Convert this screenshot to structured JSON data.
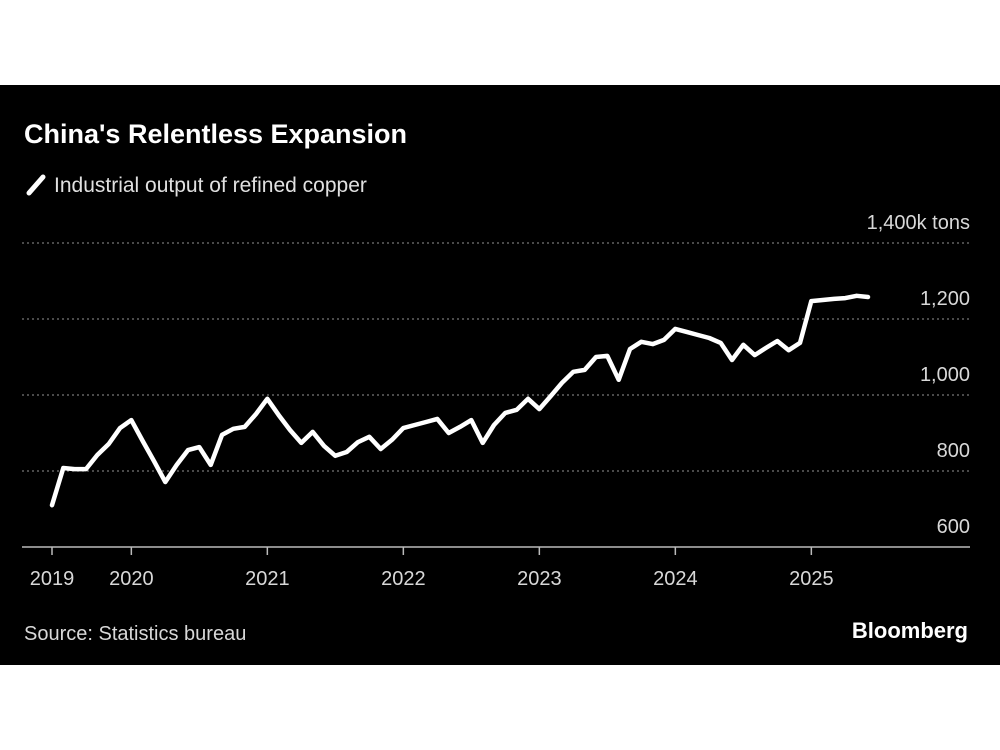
{
  "chart_data": {
    "type": "line",
    "title": "China's Relentless Expansion",
    "source": "Source: Statistics bureau",
    "brand": "Bloomberg",
    "x": [
      "2019-06",
      "2019-07",
      "2019-08",
      "2019-09",
      "2019-10",
      "2019-11",
      "2019-12",
      "2020-01",
      "2020-02",
      "2020-03",
      "2020-04",
      "2020-05",
      "2020-06",
      "2020-07",
      "2020-08",
      "2020-09",
      "2020-10",
      "2020-11",
      "2020-12",
      "2021-01",
      "2021-02",
      "2021-03",
      "2021-04",
      "2021-05",
      "2021-06",
      "2021-07",
      "2021-08",
      "2021-09",
      "2021-10",
      "2021-11",
      "2021-12",
      "2022-01",
      "2022-02",
      "2022-03",
      "2022-04",
      "2022-05",
      "2022-06",
      "2022-07",
      "2022-08",
      "2022-09",
      "2022-10",
      "2022-11",
      "2022-12",
      "2023-01",
      "2023-02",
      "2023-03",
      "2023-04",
      "2023-05",
      "2023-06",
      "2023-07",
      "2023-08",
      "2023-09",
      "2023-10",
      "2023-11",
      "2023-12",
      "2024-01",
      "2024-02",
      "2024-03",
      "2024-04",
      "2024-05",
      "2024-06",
      "2024-07",
      "2024-08",
      "2024-09",
      "2024-10",
      "2024-11",
      "2024-12",
      "2025-01",
      "2025-02",
      "2025-03",
      "2025-04",
      "2025-05",
      "2025-06"
    ],
    "series": [
      {
        "name": "Industrial output of refined copper",
        "color": "#ffffff",
        "values": [
          710,
          808,
          805,
          805,
          842,
          871,
          913,
          934,
          879,
          826,
          771,
          816,
          855,
          863,
          816,
          895,
          911,
          916,
          950,
          990,
          947,
          908,
          874,
          903,
          866,
          840,
          850,
          876,
          890,
          858,
          882,
          913,
          921,
          929,
          937,
          900,
          916,
          934,
          874,
          921,
          953,
          961,
          990,
          963,
          997,
          1032,
          1061,
          1066,
          1100,
          1103,
          1040,
          1121,
          1140,
          1134,
          1145,
          1174,
          1166,
          1158,
          1150,
          1137,
          1092,
          1132,
          1105,
          1124,
          1142,
          1118,
          1137,
          1247,
          1250,
          1253,
          1255,
          1261,
          1258
        ]
      }
    ],
    "xlim": [
      "2019-03",
      "2026-03"
    ],
    "xticks": [
      {
        "value": "2019-06",
        "label": "2019"
      },
      {
        "value": "2020-01",
        "label": "2020"
      },
      {
        "value": "2021-01",
        "label": "2021"
      },
      {
        "value": "2022-01",
        "label": "2022"
      },
      {
        "value": "2023-01",
        "label": "2023"
      },
      {
        "value": "2024-01",
        "label": "2024"
      },
      {
        "value": "2025-01",
        "label": "2025"
      }
    ],
    "ylim": [
      600,
      1400
    ],
    "yticks": [
      600,
      800,
      {
        "value": 1000,
        "label": "1,000"
      },
      {
        "value": 1200,
        "label": "1,200"
      },
      {
        "value": 1400,
        "label": "1,400k tons"
      }
    ],
    "grid": true
  }
}
